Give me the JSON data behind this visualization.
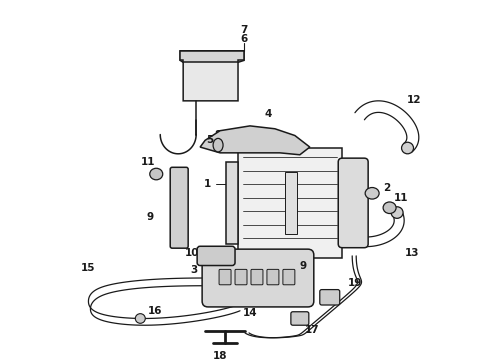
{
  "background_color": "#ffffff",
  "line_color": "#1a1a1a",
  "text_color": "#1a1a1a",
  "figsize": [
    4.9,
    3.6
  ],
  "dpi": 100,
  "lw": 1.1
}
